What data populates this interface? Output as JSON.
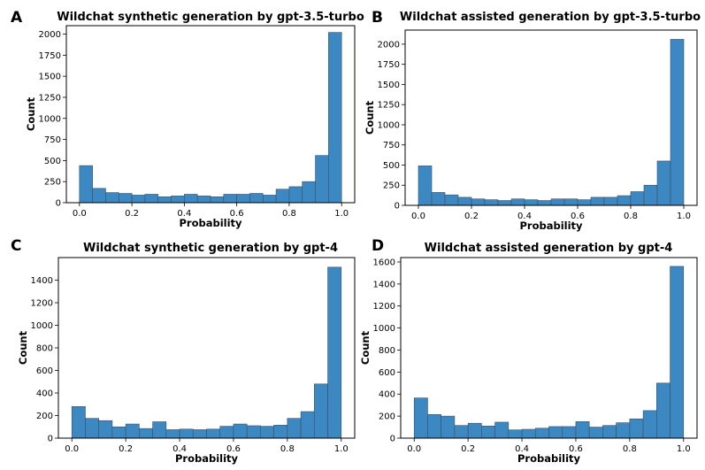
{
  "chart_data": [
    {
      "type": "bar",
      "panel_label": "A",
      "title": "Wildchat synthetic generation by gpt-3.5-turbo",
      "xlabel": "Probability",
      "ylabel": "Count",
      "xlim": [
        -0.05,
        1.05
      ],
      "ylim": [
        0,
        2100
      ],
      "xticks": [
        0.0,
        0.2,
        0.4,
        0.6,
        0.8,
        1.0
      ],
      "xtick_labels": [
        "0.0",
        "0.2",
        "0.4",
        "0.6",
        "0.8",
        "1.0"
      ],
      "yticks": [
        0,
        250,
        500,
        750,
        1000,
        1250,
        1500,
        1750,
        2000
      ],
      "ytick_labels": [
        "0",
        "250",
        "500",
        "750",
        "1000",
        "1250",
        "1500",
        "1750",
        "2000"
      ],
      "bin_edges": [
        0.0,
        0.05,
        0.1,
        0.15,
        0.2,
        0.25,
        0.3,
        0.35,
        0.4,
        0.45,
        0.5,
        0.55,
        0.6,
        0.65,
        0.7,
        0.75,
        0.8,
        0.85,
        0.9,
        0.95,
        1.0
      ],
      "values": [
        440,
        170,
        120,
        110,
        90,
        100,
        70,
        80,
        100,
        80,
        70,
        100,
        100,
        110,
        90,
        160,
        190,
        250,
        560,
        2020
      ],
      "color": "#3b88c3",
      "edge_color": "#3f4f5f",
      "grid": false
    },
    {
      "type": "bar",
      "panel_label": "B",
      "title": "Wildchat assisted generation by gpt-3.5-turbo",
      "xlabel": "Probability",
      "ylabel": "Count",
      "xlim": [
        -0.05,
        1.05
      ],
      "ylim": [
        0,
        2175
      ],
      "xticks": [
        0.0,
        0.2,
        0.4,
        0.6,
        0.8,
        1.0
      ],
      "xtick_labels": [
        "0.0",
        "0.2",
        "0.4",
        "0.6",
        "0.8",
        "1.0"
      ],
      "yticks": [
        0,
        250,
        500,
        750,
        1000,
        1250,
        1500,
        1750,
        2000
      ],
      "ytick_labels": [
        "0",
        "250",
        "500",
        "750",
        "1000",
        "1250",
        "1500",
        "1750",
        "2000"
      ],
      "bin_edges": [
        0.0,
        0.05,
        0.1,
        0.15,
        0.2,
        0.25,
        0.3,
        0.35,
        0.4,
        0.45,
        0.5,
        0.55,
        0.6,
        0.65,
        0.7,
        0.75,
        0.8,
        0.85,
        0.9,
        0.95,
        1.0
      ],
      "values": [
        490,
        160,
        130,
        100,
        80,
        70,
        60,
        80,
        70,
        60,
        80,
        80,
        70,
        100,
        100,
        120,
        170,
        250,
        550,
        2060
      ],
      "color": "#3b88c3",
      "edge_color": "#3f4f5f",
      "grid": false
    },
    {
      "type": "bar",
      "panel_label": "C",
      "title": "Wildchat synthetic generation by gpt-4",
      "xlabel": "Probability",
      "ylabel": "Count",
      "xlim": [
        -0.05,
        1.05
      ],
      "ylim": [
        0,
        1600
      ],
      "xticks": [
        0.0,
        0.2,
        0.4,
        0.6,
        0.8,
        1.0
      ],
      "xtick_labels": [
        "0.0",
        "0.2",
        "0.4",
        "0.6",
        "0.8",
        "1.0"
      ],
      "yticks": [
        0,
        200,
        400,
        600,
        800,
        1000,
        1200,
        1400
      ],
      "ytick_labels": [
        "0",
        "200",
        "400",
        "600",
        "800",
        "1000",
        "1200",
        "1400"
      ],
      "bin_edges": [
        0.0,
        0.05,
        0.1,
        0.15,
        0.2,
        0.25,
        0.3,
        0.35,
        0.4,
        0.45,
        0.5,
        0.55,
        0.6,
        0.65,
        0.7,
        0.75,
        0.8,
        0.85,
        0.9,
        0.95,
        1.0
      ],
      "values": [
        280,
        175,
        155,
        100,
        125,
        85,
        145,
        75,
        80,
        75,
        80,
        105,
        125,
        110,
        105,
        115,
        175,
        235,
        480,
        1515
      ],
      "color": "#3b88c3",
      "edge_color": "#3f4f5f",
      "grid": false
    },
    {
      "type": "bar",
      "panel_label": "D",
      "title": "Wildchat assisted generation by gpt-4",
      "xlabel": "Probability",
      "ylabel": "Count",
      "xlim": [
        -0.05,
        1.05
      ],
      "ylim": [
        0,
        1640
      ],
      "xticks": [
        0.0,
        0.2,
        0.4,
        0.6,
        0.8,
        1.0
      ],
      "xtick_labels": [
        "0.0",
        "0.2",
        "0.4",
        "0.6",
        "0.8",
        "1.0"
      ],
      "yticks": [
        0,
        200,
        400,
        600,
        800,
        1000,
        1200,
        1400,
        1600
      ],
      "ytick_labels": [
        "0",
        "200",
        "400",
        "600",
        "800",
        "1000",
        "1200",
        "1400",
        "1600"
      ],
      "bin_edges": [
        0.0,
        0.05,
        0.1,
        0.15,
        0.2,
        0.25,
        0.3,
        0.35,
        0.4,
        0.45,
        0.5,
        0.55,
        0.6,
        0.65,
        0.7,
        0.75,
        0.8,
        0.85,
        0.9,
        0.95,
        1.0
      ],
      "values": [
        365,
        215,
        200,
        115,
        135,
        110,
        145,
        75,
        80,
        90,
        105,
        105,
        150,
        100,
        115,
        140,
        175,
        250,
        500,
        1560
      ],
      "color": "#3b88c3",
      "edge_color": "#3f4f5f",
      "grid": false
    }
  ]
}
